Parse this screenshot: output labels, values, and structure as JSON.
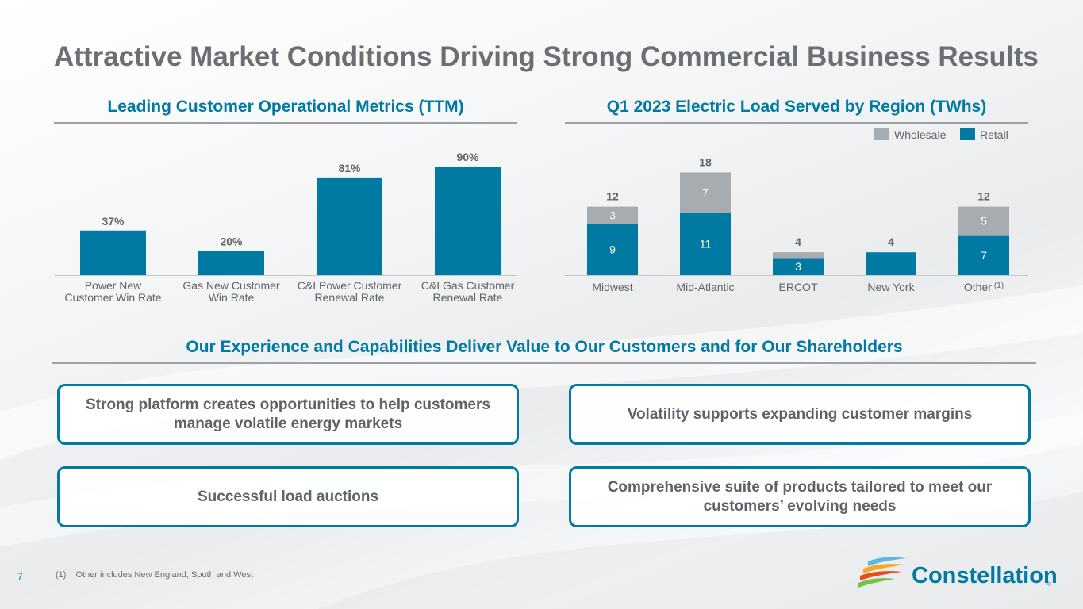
{
  "title": "Attractive Market Conditions Driving Strong Commercial Business Results",
  "metrics_section": {
    "heading": "Leading Customer Operational Metrics (TTM)"
  },
  "load_section": {
    "heading": "Q1 2023 Electric Load Served by Region (TWhs)"
  },
  "value_section": {
    "heading": "Our Experience and Capabilities Deliver Value to Our Customers and for Our Shareholders"
  },
  "boxes": [
    "Strong platform creates opportunities to help customers manage volatile energy markets",
    "Volatility supports expanding customer margins",
    "Successful load auctions",
    "Comprehensive suite of products tailored to meet our customers’ evolving needs"
  ],
  "footer": {
    "page_number": "7",
    "footnote_mark": "(1)",
    "footnote_text": "Other includes New England, South and West",
    "logo_text": "Constellation",
    "logo_tm": "®"
  },
  "colors": {
    "accent": "#0079a3",
    "wholesale": "#a7acb0",
    "text": "#5f6368"
  },
  "chart_data": [
    {
      "type": "bar",
      "title": "Leading Customer Operational Metrics (TTM)",
      "categories": [
        "Power New Customer Win Rate",
        "Gas New Customer Win Rate",
        "C&I Power Customer Renewal Rate",
        "C&I Gas Customer Renewal Rate"
      ],
      "category_lines": [
        [
          "Power New",
          "Customer Win Rate"
        ],
        [
          "Gas New Customer",
          "Win Rate"
        ],
        [
          "C&I Power Customer",
          "Renewal Rate"
        ],
        [
          "C&I Gas Customer",
          "Renewal Rate"
        ]
      ],
      "values": [
        37,
        20,
        81,
        90
      ],
      "value_labels": [
        "37%",
        "20%",
        "81%",
        "90%"
      ],
      "ylim": [
        0,
        100
      ],
      "xlabel": "",
      "ylabel": "",
      "grid": false
    },
    {
      "type": "bar",
      "stacked": true,
      "title": "Q1 2023 Electric Load Served by Region (TWhs)",
      "categories": [
        "Midwest",
        "Mid-Atlantic",
        "ERCOT",
        "New York",
        "Other"
      ],
      "category_notes": [
        "",
        "",
        "",
        "",
        "(1)"
      ],
      "series": [
        {
          "name": "Retail",
          "values": [
            9,
            11,
            3,
            4,
            7
          ],
          "labels": [
            "9",
            "11",
            "3",
            "",
            "7"
          ]
        },
        {
          "name": "Wholesale",
          "values": [
            3,
            7,
            1,
            0,
            5
          ],
          "labels": [
            "3",
            "7",
            "",
            "",
            "5"
          ]
        }
      ],
      "totals": [
        "12",
        "18",
        "4",
        "4",
        "12"
      ],
      "legend": [
        "Wholesale",
        "Retail"
      ],
      "legend_position": "top-right",
      "ylim": [
        0,
        20
      ],
      "xlabel": "",
      "ylabel": "",
      "grid": false
    }
  ]
}
